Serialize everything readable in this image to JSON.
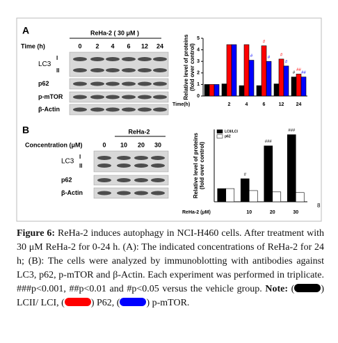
{
  "panels": [
    {
      "label": "A",
      "treatment": "ReHa-2 ( 30 μM )",
      "lane_title": "Time (h)",
      "lanes": [
        "0",
        "2",
        "4",
        "6",
        "12",
        "24"
      ],
      "lc3": "LC3",
      "lc3_forms": [
        "I",
        "II"
      ],
      "rows": [
        "p62",
        "p-mTOR",
        "β-Actin"
      ]
    },
    {
      "label": "B",
      "treatment": "ReHa-2",
      "lane_title": "Concentration (μM)",
      "lanes": [
        "0",
        "10",
        "20",
        "30"
      ],
      "lc3": "LC3",
      "lc3_forms": [
        "I",
        "II"
      ],
      "rows": [
        "p62",
        "β-Actin"
      ]
    }
  ],
  "chart_data": [
    {
      "type": "bar",
      "ylabel": [
        "Relative level of proteins",
        "(fold over control)"
      ],
      "xlabel": "Time(h)",
      "categories": [
        null,
        "2",
        "4",
        "6",
        "12",
        "24"
      ],
      "ylim": [
        0,
        5
      ],
      "yticks": [
        0,
        1,
        2,
        3,
        4,
        5
      ],
      "series": [
        {
          "color": "#000000",
          "values": [
            1,
            1.05,
            0.9,
            0.9,
            1.05,
            1.65
          ],
          "annotations": [
            null,
            null,
            null,
            null,
            null,
            "#"
          ]
        },
        {
          "color": "#ff0000",
          "values": [
            1,
            4.45,
            4.45,
            4.35,
            3.2,
            1.9
          ],
          "annotations": [
            null,
            null,
            null,
            "#",
            "#",
            "##"
          ]
        },
        {
          "color": "#0000ff",
          "values": [
            1,
            4.45,
            3.1,
            3.0,
            2.6,
            1.65
          ],
          "annotations": [
            null,
            null,
            "#",
            "#",
            "#",
            "##"
          ]
        }
      ]
    },
    {
      "type": "bar",
      "ylabel": [
        "Relative level of proteins",
        "(fold over control)"
      ],
      "xlabel": "ReHa-2 (μM)",
      "categories": [
        null,
        "10",
        "20",
        "30"
      ],
      "ylim": [
        0,
        5.5
      ],
      "legend": "top-left",
      "series": [
        {
          "name": "LCII/LCI",
          "color": "#000000",
          "values": [
            1,
            1.75,
            4.25,
            5.1
          ],
          "annotations": [
            null,
            "#",
            "###",
            "###"
          ]
        },
        {
          "name": "p62",
          "color": "#ffffff",
          "values": [
            1,
            0.85,
            0.75,
            0.7
          ],
          "annotations": [
            null,
            null,
            null,
            null
          ]
        }
      ],
      "side_note": "8"
    }
  ],
  "caption": {
    "figure_label": "Figure 6:",
    "text": " ReHa-2 induces autophagy in NCI-H460 cells. After treatment with 30 μM ReHa-2 for 0-24 h. (A): The indicated concentrations of ReHa-2 for 24 h; (B): The cells were analyzed by immunoblotting with antibodies against LC3, p62, p-mTOR and β-Actin. Each experiment was performed in triplicate. ###p<0.001, ##p<0.01 and #p<0.05 versus the vehicle group. ",
    "note_label": "Note:",
    "note_parts": [
      " (",
      ") LCII/ LCI, (",
      ") P62, (",
      ") p-mTOR."
    ],
    "note_colors": [
      "#000000",
      "#ff0000",
      "#0000ff"
    ]
  }
}
